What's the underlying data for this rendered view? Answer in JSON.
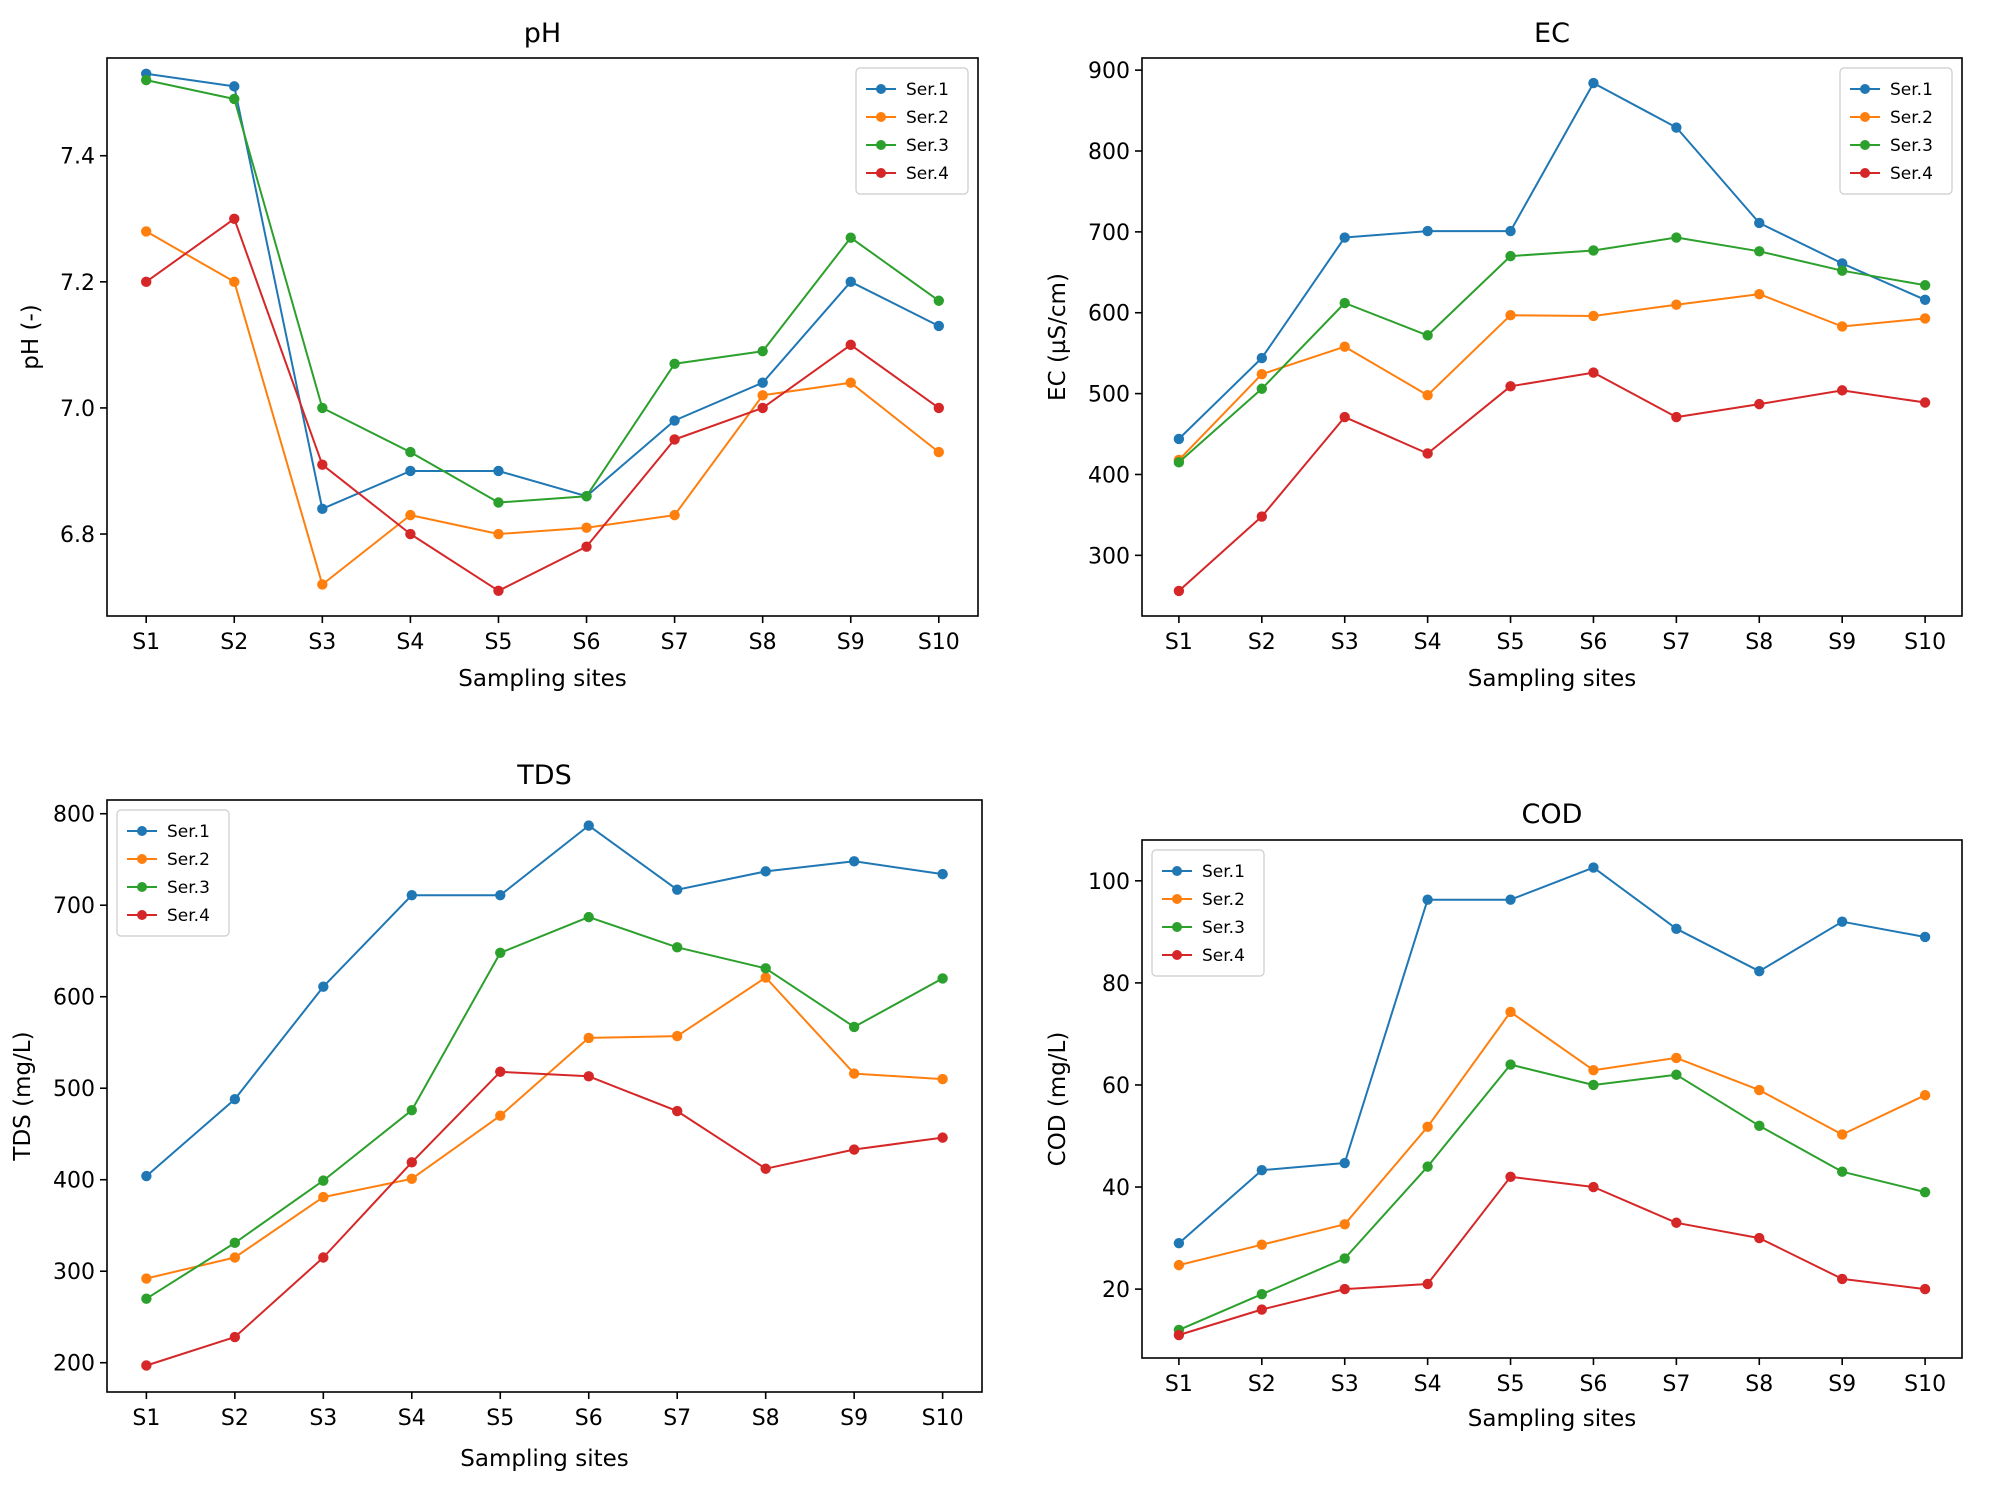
{
  "chart_data": [
    {
      "type": "line",
      "title": "pH",
      "xlabel": "Sampling sites",
      "ylabel": "pH (-)",
      "categories": [
        "S1",
        "S2",
        "S3",
        "S4",
        "S5",
        "S6",
        "S7",
        "S8",
        "S9",
        "S10"
      ],
      "ylim": [
        6.67,
        7.555
      ],
      "yticks": [
        6.8,
        7.0,
        7.2,
        7.4
      ],
      "ytick_labels": [
        "6.8",
        "7.0",
        "7.2",
        "7.4"
      ],
      "legend": "top-right",
      "grid": false,
      "series": [
        {
          "name": "Ser.1",
          "color": "#1f77b4",
          "values": [
            7.53,
            7.51,
            6.84,
            6.9,
            6.9,
            6.86,
            6.98,
            7.04,
            7.2,
            7.13
          ]
        },
        {
          "name": "Ser.2",
          "color": "#ff7f0e",
          "values": [
            7.28,
            7.2,
            6.72,
            6.83,
            6.8,
            6.81,
            6.83,
            7.02,
            7.04,
            6.93
          ]
        },
        {
          "name": "Ser.3",
          "color": "#2ca02c",
          "values": [
            7.52,
            7.49,
            7.0,
            6.93,
            6.85,
            6.86,
            7.07,
            7.09,
            7.27,
            7.17
          ]
        },
        {
          "name": "Ser.4",
          "color": "#d62728",
          "values": [
            7.2,
            7.3,
            6.91,
            6.8,
            6.71,
            6.78,
            6.95,
            7.0,
            7.1,
            7.0
          ]
        }
      ]
    },
    {
      "type": "line",
      "title": "EC",
      "xlabel": "Sampling sites",
      "ylabel": "EC (µS/cm)",
      "categories": [
        "S1",
        "S2",
        "S3",
        "S4",
        "S5",
        "S6",
        "S7",
        "S8",
        "S9",
        "S10"
      ],
      "ylim": [
        225,
        915
      ],
      "yticks": [
        300,
        400,
        500,
        600,
        700,
        800,
        900
      ],
      "ytick_labels": [
        "300",
        "400",
        "500",
        "600",
        "700",
        "800",
        "900"
      ],
      "legend": "top-right",
      "grid": false,
      "series": [
        {
          "name": "Ser.1",
          "color": "#1f77b4",
          "values": [
            444,
            544,
            693,
            701,
            701,
            884,
            829,
            711,
            661,
            616
          ]
        },
        {
          "name": "Ser.2",
          "color": "#ff7f0e",
          "values": [
            418,
            524,
            558,
            498,
            597,
            596,
            610,
            623,
            583,
            593
          ]
        },
        {
          "name": "Ser.3",
          "color": "#2ca02c",
          "values": [
            415,
            506,
            612,
            572,
            670,
            677,
            693,
            676,
            652,
            634
          ]
        },
        {
          "name": "Ser.4",
          "color": "#d62728",
          "values": [
            256,
            348,
            471,
            426,
            509,
            526,
            471,
            487,
            504,
            489
          ]
        }
      ]
    },
    {
      "type": "line",
      "title": "TDS",
      "xlabel": "Sampling sites",
      "ylabel": "TDS (mg/L)",
      "categories": [
        "S1",
        "S2",
        "S3",
        "S4",
        "S5",
        "S6",
        "S7",
        "S8",
        "S9",
        "S10"
      ],
      "ylim": [
        168,
        815
      ],
      "yticks": [
        200,
        300,
        400,
        500,
        600,
        700,
        800
      ],
      "ytick_labels": [
        "200",
        "300",
        "400",
        "500",
        "600",
        "700",
        "800"
      ],
      "legend": "top-left",
      "grid": false,
      "series": [
        {
          "name": "Ser.1",
          "color": "#1f77b4",
          "values": [
            404,
            488,
            611,
            711,
            711,
            787,
            717,
            737,
            748,
            734
          ]
        },
        {
          "name": "Ser.2",
          "color": "#ff7f0e",
          "values": [
            292,
            315,
            381,
            401,
            470,
            555,
            557,
            621,
            516,
            510
          ]
        },
        {
          "name": "Ser.3",
          "color": "#2ca02c",
          "values": [
            270,
            331,
            399,
            476,
            648,
            687,
            654,
            631,
            567,
            620
          ]
        },
        {
          "name": "Ser.4",
          "color": "#d62728",
          "values": [
            197,
            228,
            315,
            419,
            518,
            513,
            475,
            412,
            433,
            446
          ]
        }
      ]
    },
    {
      "type": "line",
      "title": "COD",
      "xlabel": "Sampling sites",
      "ylabel": "COD (mg/L)",
      "categories": [
        "S1",
        "S2",
        "S3",
        "S4",
        "S5",
        "S6",
        "S7",
        "S8",
        "S9",
        "S10"
      ],
      "ylim": [
        6.5,
        108
      ],
      "yticks": [
        20,
        40,
        60,
        80,
        100
      ],
      "ytick_labels": [
        "20",
        "40",
        "60",
        "80",
        "100"
      ],
      "legend": "top-left",
      "grid": false,
      "series": [
        {
          "name": "Ser.1",
          "color": "#1f77b4",
          "values": [
            29,
            43.3,
            44.7,
            96.3,
            96.3,
            102.6,
            90.6,
            82.3,
            92,
            89
          ]
        },
        {
          "name": "Ser.2",
          "color": "#ff7f0e",
          "values": [
            24.7,
            28.7,
            32.7,
            51.8,
            74.3,
            62.9,
            65.3,
            59,
            50.3,
            58
          ]
        },
        {
          "name": "Ser.3",
          "color": "#2ca02c",
          "values": [
            12,
            19,
            26,
            44,
            64,
            60,
            62,
            52,
            43,
            39
          ]
        },
        {
          "name": "Ser.4",
          "color": "#d62728",
          "values": [
            11,
            16,
            20,
            21,
            42,
            40,
            33,
            30,
            22,
            20
          ]
        }
      ]
    }
  ]
}
